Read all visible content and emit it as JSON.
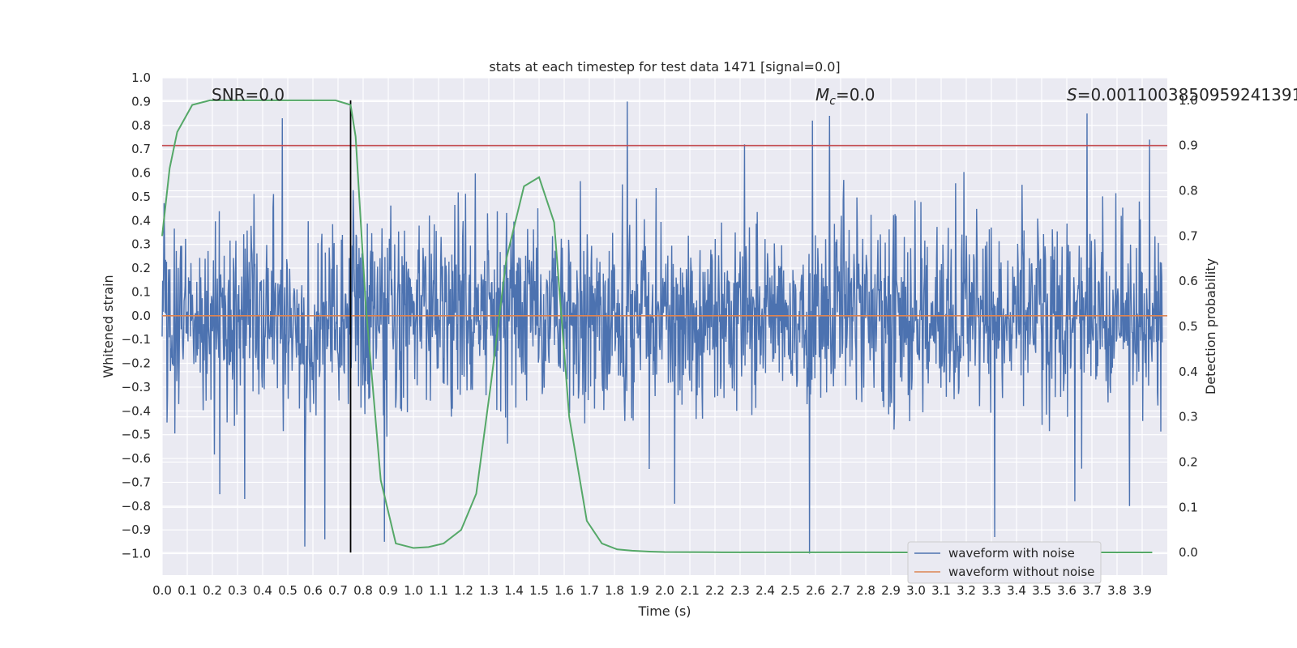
{
  "chart_data": {
    "type": "line",
    "title": "stats at each timestep for test data 1471 [signal=0.0]",
    "xlabel": "Time (s)",
    "ylabel": "Whitened strain",
    "y2label": "Detection probability",
    "xlim": [
      0.0,
      4.0
    ],
    "ylim": [
      -1.09,
      1.0
    ],
    "y2lim": [
      -0.05,
      1.05
    ],
    "x_ticks": [
      "0.0",
      "0.1",
      "0.2",
      "0.3",
      "0.4",
      "0.5",
      "0.6",
      "0.7",
      "0.8",
      "0.9",
      "1.0",
      "1.1",
      "1.2",
      "1.3",
      "1.4",
      "1.5",
      "1.6",
      "1.7",
      "1.8",
      "1.9",
      "2.0",
      "2.1",
      "2.2",
      "2.3",
      "2.4",
      "2.5",
      "2.6",
      "2.7",
      "2.8",
      "2.9",
      "3.0",
      "3.1",
      "3.2",
      "3.3",
      "3.4",
      "3.5",
      "3.6",
      "3.7",
      "3.8",
      "3.9"
    ],
    "y_ticks": [
      "1.0",
      "0.9",
      "0.8",
      "0.7",
      "0.6",
      "0.5",
      "0.4",
      "0.3",
      "0.2",
      "0.1",
      "0.0",
      "−0.1",
      "−0.2",
      "−0.3",
      "−0.4",
      "−0.5",
      "−0.6",
      "−0.7",
      "−0.8",
      "−0.9",
      "−1.0"
    ],
    "y2_ticks": [
      "1.0",
      "0.9",
      "0.8",
      "0.7",
      "0.6",
      "0.5",
      "0.4",
      "0.3",
      "0.2",
      "0.1",
      "0.0"
    ],
    "grid": true,
    "legend_position": "lower-right",
    "annotations": {
      "snr": "SNR=0.0",
      "mc_sym": "M",
      "mc_sub": "c",
      "mc_val": "=0.0",
      "s_sym": "S",
      "s_val": "=0.0011003850959241391"
    },
    "series": [
      {
        "name": "waveform with noise",
        "color": "#4c72b0",
        "description_values": "dense whitened noise, amplitude mostly within ±0.6, spikes to ~0.9 and ~−1.0",
        "spikes": [
          [
            0.48,
            0.83
          ],
          [
            1.86,
            0.9
          ],
          [
            2.59,
            -1.0
          ],
          [
            2.6,
            0.82
          ],
          [
            2.67,
            0.84
          ],
          [
            3.33,
            -0.93
          ],
          [
            3.7,
            0.85
          ],
          [
            3.95,
            0.74
          ],
          [
            0.57,
            -0.97
          ],
          [
            0.65,
            -0.94
          ],
          [
            0.89,
            -0.95
          ],
          [
            0.23,
            -0.75
          ],
          [
            0.33,
            -0.77
          ],
          [
            2.05,
            -0.79
          ],
          [
            3.65,
            -0.78
          ],
          [
            3.87,
            -0.8
          ]
        ]
      },
      {
        "name": "waveform without noise",
        "color": "#dd8452",
        "x": [
          0.0,
          4.0
        ],
        "y": [
          0.0,
          0.0
        ]
      },
      {
        "name": "detection probability",
        "color": "#55a868",
        "axis": "right",
        "x": [
          0.0,
          0.03,
          0.06,
          0.12,
          0.19,
          0.25,
          0.31,
          0.37,
          0.44,
          0.5,
          0.56,
          0.62,
          0.69,
          0.75,
          0.77,
          0.81,
          0.87,
          0.93,
          1.0,
          1.06,
          1.12,
          1.19,
          1.25,
          1.31,
          1.37,
          1.44,
          1.5,
          1.56,
          1.62,
          1.69,
          1.75,
          1.81,
          1.87,
          1.94,
          2.0,
          2.2,
          2.4,
          2.6,
          2.8,
          3.0,
          3.2,
          3.4,
          3.6,
          3.8,
          3.94
        ],
        "y": [
          0.7,
          0.85,
          0.93,
          0.99,
          1.0,
          1.0,
          1.0,
          1.0,
          1.0,
          1.0,
          1.0,
          1.0,
          1.0,
          0.99,
          0.92,
          0.55,
          0.16,
          0.02,
          0.01,
          0.012,
          0.02,
          0.05,
          0.13,
          0.38,
          0.65,
          0.81,
          0.83,
          0.73,
          0.3,
          0.07,
          0.02,
          0.007,
          0.004,
          0.002,
          0.001,
          0.0005,
          0.0004,
          0.0003,
          0.0003,
          0.0002,
          0.0002,
          0.0002,
          0.0002,
          0.0002,
          0.0002
        ]
      }
    ],
    "hlines": [
      {
        "axis": "left",
        "y": 0.715,
        "color": "#c44e52"
      }
    ],
    "vlines": [
      {
        "x": 0.75,
        "color": "#000000"
      }
    ]
  }
}
